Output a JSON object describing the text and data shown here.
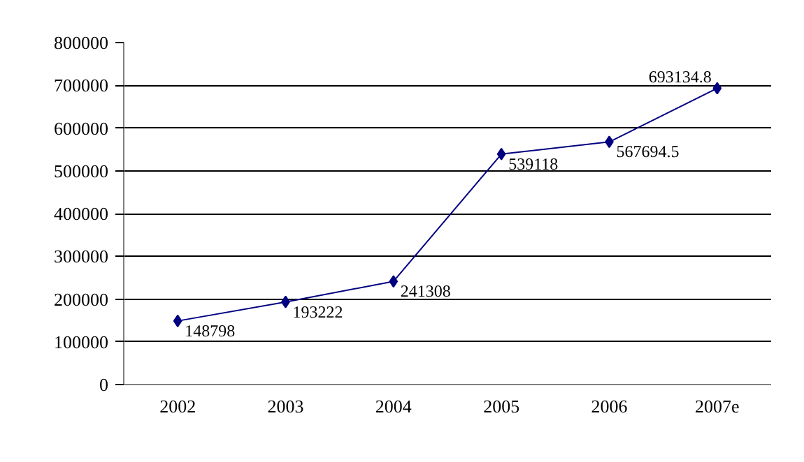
{
  "chart_data": {
    "type": "line",
    "categories": [
      "2002",
      "2003",
      "2004",
      "2005",
      "2006",
      "2007e"
    ],
    "series": [
      {
        "color": "#000080",
        "values": [
          148798,
          193222,
          241308,
          539118,
          567694.5,
          693134.8
        ]
      }
    ],
    "ylim": [
      0,
      800000
    ],
    "yticks": [
      0,
      100000,
      200000,
      300000,
      400000,
      500000,
      600000,
      700000,
      800000
    ],
    "grid": "y",
    "marker": "diamond",
    "line_style": "solid",
    "data_labels": true
  }
}
